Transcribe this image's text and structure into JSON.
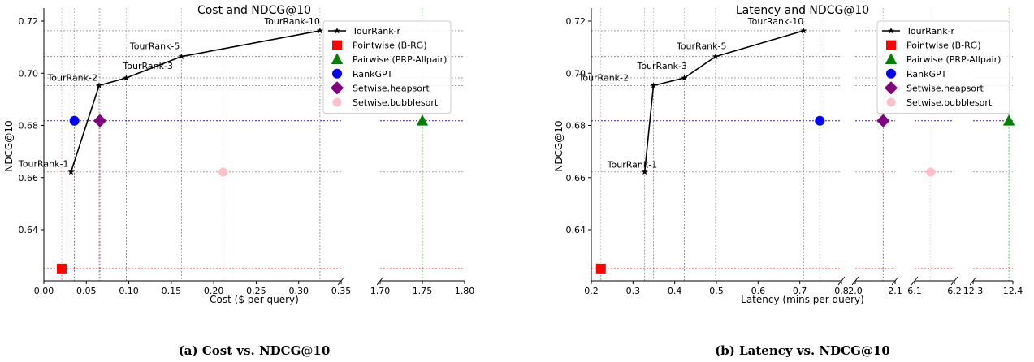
{
  "chart_data": [
    {
      "type": "line",
      "title": "Cost and NDCG@10",
      "xlabel": "Cost ($ per query)",
      "ylabel": "NDCG@10",
      "caption": "(a) Cost vs. NDCG@10",
      "broken_x_axis": true,
      "segments": [
        {
          "xlim": [
            0.0,
            0.35
          ],
          "ticks": [
            0.0,
            0.05,
            0.1,
            0.15,
            0.2,
            0.25,
            0.3,
            0.35
          ],
          "tick_labels": [
            "0.00",
            "0.05",
            "0.10",
            "0.15",
            "0.20",
            "0.25",
            "0.30",
            "0.35"
          ]
        },
        {
          "xlim": [
            1.7,
            1.8
          ],
          "ticks": [
            1.7,
            1.75,
            1.8
          ],
          "tick_labels": [
            "1.70",
            "1.75",
            "1.80"
          ]
        }
      ],
      "ylim": [
        0.6215,
        0.72
      ],
      "yticks": [
        0.64,
        0.66,
        0.68,
        0.7,
        0.72
      ],
      "ytick_labels": [
        "0.64",
        "0.66",
        "0.68",
        "0.70",
        "0.72"
      ],
      "grid": "dotted reference lines at each point",
      "legend_position": "top-right",
      "series": [
        {
          "name": "TourRank-r",
          "kind": "line",
          "marker": "star",
          "color": "#000000",
          "points": [
            {
              "x": 0.032,
              "y": 0.6622,
              "label": "TourRank-1"
            },
            {
              "x": 0.065,
              "y": 0.6953,
              "label": "TourRank-2"
            },
            {
              "x": 0.097,
              "y": 0.6982,
              "label": "TourRank-3"
            },
            {
              "x": 0.162,
              "y": 0.7064,
              "label": "TourRank-5"
            },
            {
              "x": 0.325,
              "y": 0.7163,
              "label": "TourRank-10"
            }
          ]
        },
        {
          "name": "Pointwise (B-RG)",
          "kind": "point",
          "marker": "square",
          "color": "#ff0000",
          "points": [
            {
              "x": 0.021,
              "y": 0.6251
            }
          ]
        },
        {
          "name": "Pairwise (PRP-Allpair)",
          "kind": "point",
          "marker": "triangle",
          "color": "#008000",
          "points": [
            {
              "x": 1.75,
              "y": 0.6818
            }
          ]
        },
        {
          "name": "RankGPT",
          "kind": "point",
          "marker": "circle",
          "color": "#0000ff",
          "points": [
            {
              "x": 0.036,
              "y": 0.6818
            }
          ]
        },
        {
          "name": "Setwise.heapsort",
          "kind": "point",
          "marker": "diamond",
          "color": "#800080",
          "points": [
            {
              "x": 0.066,
              "y": 0.6818
            }
          ]
        },
        {
          "name": "Setwise.bubblesort",
          "kind": "point",
          "marker": "circle",
          "color": "#ffc0cb",
          "points": [
            {
              "x": 0.211,
              "y": 0.6621
            }
          ]
        }
      ]
    },
    {
      "type": "line",
      "title": "Latency and NDCG@10",
      "xlabel": "Latency (mins per query)",
      "ylabel": "NDCG@10",
      "caption": "(b) Latency vs. NDCG@10",
      "broken_x_axis": true,
      "segments": [
        {
          "xlim": [
            0.2,
            0.8
          ],
          "ticks": [
            0.2,
            0.3,
            0.4,
            0.5,
            0.6,
            0.7,
            0.8
          ],
          "tick_labels": [
            "0.2",
            "0.3",
            "0.4",
            "0.5",
            "0.6",
            "0.7",
            "0.8"
          ]
        },
        {
          "xlim": [
            2.0,
            2.1
          ],
          "ticks": [
            2.0,
            2.1
          ],
          "tick_labels": [
            "2.0",
            "2.1"
          ]
        },
        {
          "xlim": [
            6.1,
            6.2
          ],
          "ticks": [
            6.1,
            6.2
          ],
          "tick_labels": [
            "6.1",
            "6.2"
          ]
        },
        {
          "xlim": [
            12.3,
            12.4
          ],
          "ticks": [
            12.3,
            12.4
          ],
          "tick_labels": [
            "12.3",
            "12.4"
          ]
        }
      ],
      "ylim": [
        0.6215,
        0.72
      ],
      "yticks": [
        0.64,
        0.66,
        0.68,
        0.7,
        0.72
      ],
      "ytick_labels": [
        "0.64",
        "0.66",
        "0.68",
        "0.70",
        "0.72"
      ],
      "grid": "dotted reference lines at each point",
      "legend_position": "top-right",
      "series": [
        {
          "name": "TourRank-r",
          "kind": "line",
          "marker": "star",
          "color": "#000000",
          "points": [
            {
              "x": 0.328,
              "y": 0.6622,
              "label": "TourRank-1"
            },
            {
              "x": 0.349,
              "y": 0.6953,
              "label": "TourRank-2"
            },
            {
              "x": 0.423,
              "y": 0.6982,
              "label": "TourRank-3"
            },
            {
              "x": 0.498,
              "y": 0.7064,
              "label": "TourRank-5"
            },
            {
              "x": 0.709,
              "y": 0.7163,
              "label": "TourRank-10"
            }
          ]
        },
        {
          "name": "Pointwise (B-RG)",
          "kind": "point",
          "marker": "square",
          "color": "#ff0000",
          "points": [
            {
              "x": 0.223,
              "y": 0.6251
            }
          ]
        },
        {
          "name": "Pairwise (PRP-Allpair)",
          "kind": "point",
          "marker": "triangle",
          "color": "#008000",
          "points": [
            {
              "x": 12.39,
              "y": 0.6818
            }
          ]
        },
        {
          "name": "RankGPT",
          "kind": "point",
          "marker": "circle",
          "color": "#0000ff",
          "points": [
            {
              "x": 0.748,
              "y": 0.6818
            }
          ]
        },
        {
          "name": "Setwise.heapsort",
          "kind": "point",
          "marker": "diamond",
          "color": "#800080",
          "points": [
            {
              "x": 2.07,
              "y": 0.6818
            }
          ]
        },
        {
          "name": "Setwise.bubblesort",
          "kind": "point",
          "marker": "circle",
          "color": "#ffc0cb",
          "points": [
            {
              "x": 6.14,
              "y": 0.6621
            }
          ]
        }
      ]
    }
  ]
}
